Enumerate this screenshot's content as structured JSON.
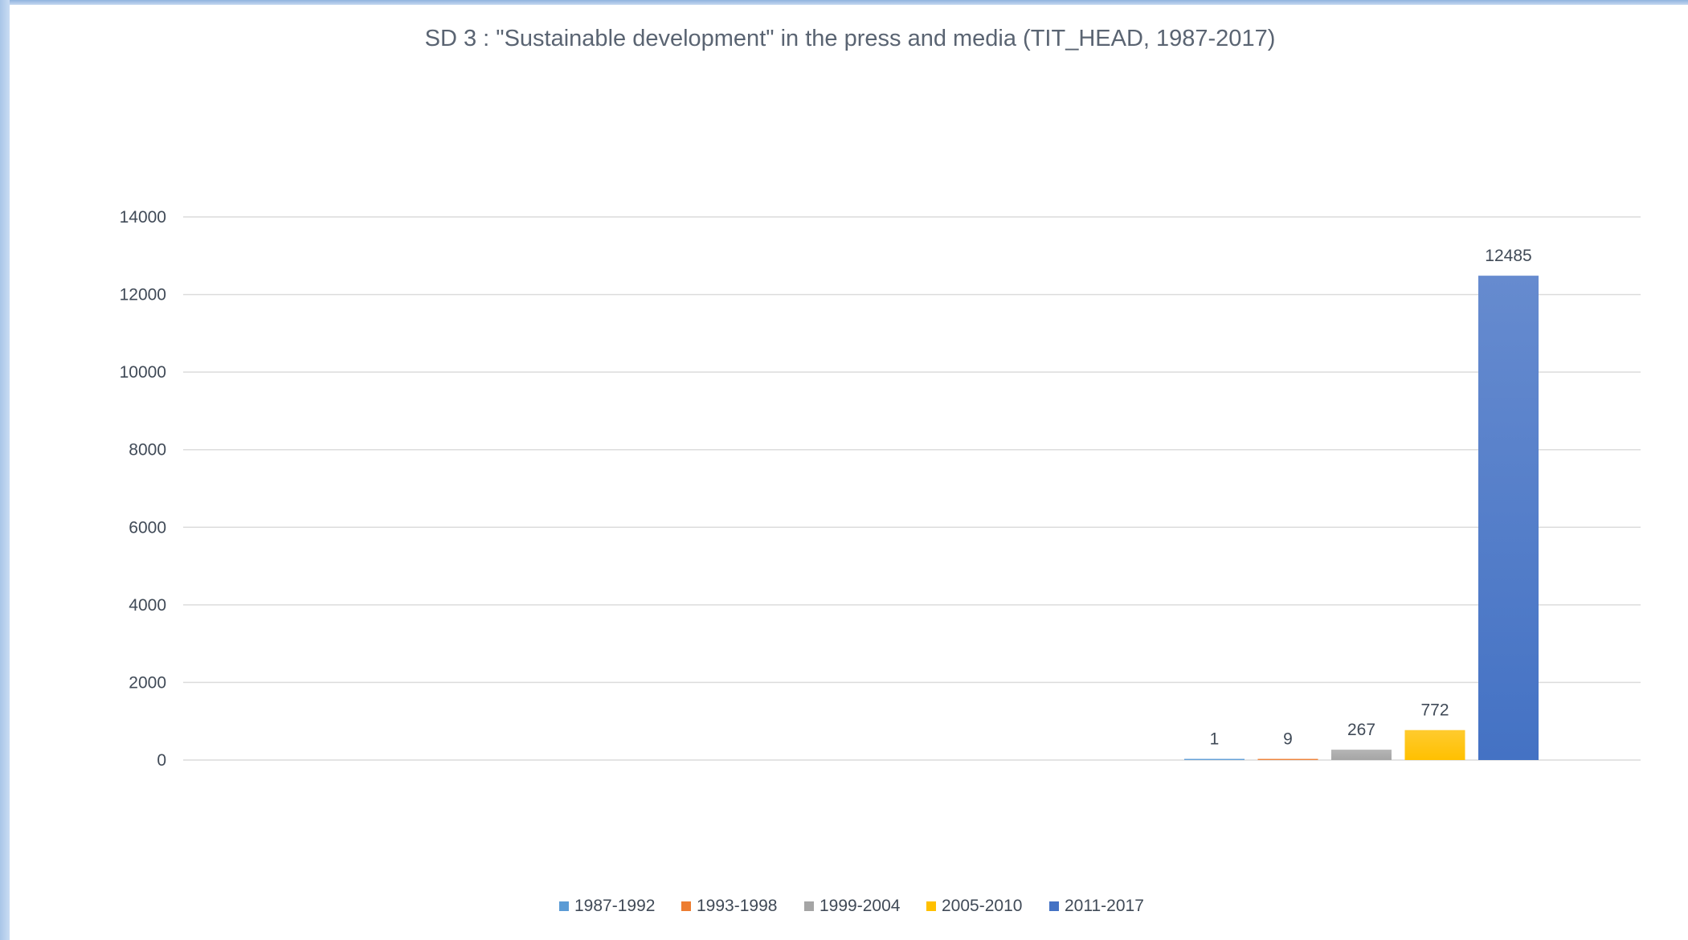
{
  "chart_data": {
    "type": "bar",
    "title": "SD 3 : \"Sustainable development\" in the press and media (TIT_HEAD, 1987-2017)",
    "xlabel": "",
    "ylabel": "",
    "ylim": [
      0,
      14000
    ],
    "yticks": [
      0,
      2000,
      4000,
      6000,
      8000,
      10000,
      12000,
      14000
    ],
    "grid": true,
    "legend_position": "bottom",
    "series": [
      {
        "name": "1987-1992",
        "value": 1,
        "label": "1",
        "color": "#5b9bd5"
      },
      {
        "name": "1993-1998",
        "value": 9,
        "label": "9",
        "color": "#ed7d31"
      },
      {
        "name": "1999-2004",
        "value": 267,
        "label": "267",
        "color": "#a5a5a5"
      },
      {
        "name": "2005-2010",
        "value": 772,
        "label": "772",
        "color": "#ffc000"
      },
      {
        "name": "2011-2017",
        "value": 12485,
        "label": "12485",
        "color": "#4472c4"
      }
    ]
  }
}
